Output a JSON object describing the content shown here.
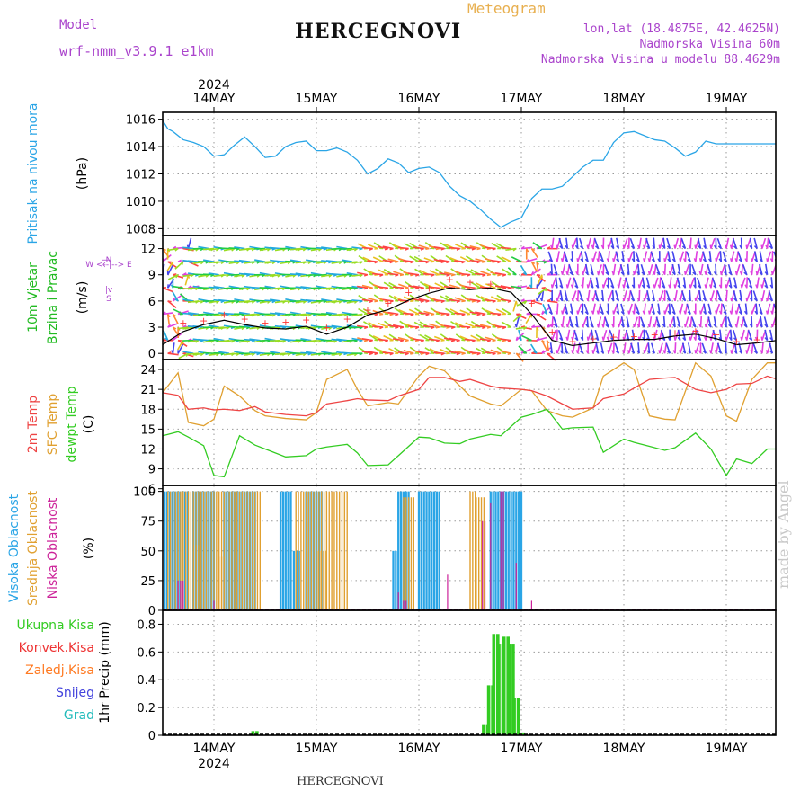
{
  "header": {
    "model_label": "Model",
    "model_name": "wrf-nmm_v3.9.1 e1km",
    "title": "HERCEGNOVI",
    "meteogram": "Meteogram",
    "lonlat": "lon,lat (18.4875E, 42.4625N)",
    "elevation": "Nadmorska Visina 60m",
    "model_elevation": "Nadmorska Visina u modelu 88.4629m",
    "footer_title": "HERCEGNOVI",
    "watermark": "made by Angel"
  },
  "colors": {
    "pressure": "#2aa5e6",
    "wind_label": "#22bb22",
    "wind_gust": "#ff3333",
    "wind_mean": "#000000",
    "temp2m": "#ee4444",
    "sfc_temp": "#e0a030",
    "dewpt": "#33cc22",
    "cloud_high": "#2aa5e6",
    "cloud_mid": "#e0a030",
    "cloud_low": "#cc2299",
    "precip_total": "#33cc22",
    "label_conv": "#ee3333",
    "label_strat": "#ff7a22",
    "label_snow": "#4444dd",
    "label_grad": "#22bbbb",
    "compass": "#aa44cc"
  },
  "time_axis": {
    "year": "2024",
    "days": [
      "14MAY",
      "15MAY",
      "16MAY",
      "17MAY",
      "18MAY",
      "19MAY"
    ]
  },
  "panel_labels": {
    "pressure": {
      "name": "Pritisak na nivou mora",
      "unit": "(hPa)"
    },
    "wind": {
      "name1": "10m Vjetar",
      "name2": "Brzina i Pravac",
      "unit": "(m/s)",
      "compass": [
        "N",
        "^",
        "|",
        "W <--|--> E",
        "|",
        "v",
        "S"
      ]
    },
    "temp": {
      "name1": "2m Temp",
      "name2": "SFC Temp",
      "name3": "dewpt Temp",
      "unit": "(C)"
    },
    "cloud": {
      "name1": "Visoka Oblacnost",
      "name2": "Srednja Oblacnost",
      "name3": "Niska Oblacnost",
      "unit": "(%)"
    },
    "precip": {
      "legend": [
        "Ukupna Kisa",
        "Konvek.Kisa",
        "Zaledj.Kisa",
        "Snijeg",
        "Grad"
      ],
      "unit": "1hr Precip (mm)"
    }
  },
  "chart_data": [
    {
      "type": "line",
      "name": "pressure",
      "ylim": [
        1007.5,
        1016.5
      ],
      "yticks": [
        1008,
        1010,
        1012,
        1014,
        1016
      ],
      "x_days": [
        0,
        0.05,
        0.1,
        0.2,
        0.3,
        0.4,
        0.5,
        0.6,
        0.7,
        0.8,
        0.9,
        1.0,
        1.1,
        1.2,
        1.3,
        1.4,
        1.5,
        1.6,
        1.7,
        1.8,
        1.9,
        2.0,
        2.1,
        2.2,
        2.3,
        2.4,
        2.5,
        2.6,
        2.7,
        2.8,
        2.9,
        3.0,
        3.1,
        3.2,
        3.3,
        3.4,
        3.5,
        3.6,
        3.7,
        3.8,
        3.9,
        4.0,
        4.1,
        4.2,
        4.3,
        4.4,
        4.5,
        4.6,
        4.7,
        4.8,
        4.9,
        5.0,
        5.1,
        5.2,
        5.3,
        5.4,
        5.5,
        5.6,
        5.7,
        5.8,
        5.9,
        6.0
      ],
      "values": [
        1015.9,
        1015.3,
        1015.1,
        1014.5,
        1014.3,
        1014.0,
        1013.3,
        1013.4,
        1014.1,
        1014.7,
        1014.0,
        1013.2,
        1013.3,
        1014.0,
        1014.3,
        1014.4,
        1013.7,
        1013.7,
        1013.9,
        1013.6,
        1013.0,
        1012.0,
        1012.4,
        1013.1,
        1012.8,
        1012.1,
        1012.4,
        1012.5,
        1012.1,
        1011.1,
        1010.4,
        1010.0,
        1009.4,
        1008.7,
        1008.1,
        1008.5,
        1008.8,
        1010.2,
        1010.9,
        1010.9,
        1011.1,
        1011.8,
        1012.5,
        1013.0,
        1013.0,
        1014.3,
        1015.0,
        1015.1,
        1014.8,
        1014.5,
        1014.4,
        1013.9,
        1013.3,
        1013.6,
        1014.4,
        1014.2,
        1014.2,
        1014.2,
        1014.2,
        1014.2,
        1014.2,
        1014.2
      ],
      "x_end": 6.0
    },
    {
      "type": "line",
      "name": "wind",
      "ylim": [
        -0.7,
        13.5
      ],
      "yticks": [
        0,
        3,
        6,
        9,
        12
      ],
      "x_days": [
        0,
        0.2,
        0.4,
        0.6,
        0.8,
        1.0,
        1.2,
        1.4,
        1.6,
        1.8,
        2.0,
        2.2,
        2.4,
        2.6,
        2.8,
        3.0,
        3.2,
        3.4,
        3.6,
        3.8,
        4.0,
        4.2,
        4.4,
        4.6,
        4.8,
        5.0,
        5.2,
        5.4,
        5.6,
        5.8,
        6.0
      ],
      "mean": [
        1.0,
        2.5,
        3.3,
        3.8,
        3.3,
        2.9,
        2.8,
        3.1,
        2.2,
        3.0,
        4.4,
        5.0,
        6.1,
        6.9,
        7.5,
        7.3,
        7.5,
        7.0,
        4.5,
        1.5,
        0.9,
        1.2,
        1.5,
        1.6,
        1.6,
        2.0,
        2.2,
        1.7,
        1.0,
        1.2,
        1.5
      ],
      "gust": [
        1.5,
        3.5,
        3.8,
        4.5,
        4.0,
        3.5,
        3.6,
        3.9,
        3.0,
        4.0,
        5.0,
        5.8,
        7.0,
        7.5,
        8.5,
        8.2,
        8.0,
        7.6,
        5.8,
        2.5,
        1.4,
        1.7,
        1.9,
        2.0,
        2.2,
        2.4,
        2.6,
        2.2,
        1.4,
        1.6,
        3.3
      ],
      "direction_regimes": [
        {
          "from_day": 0.0,
          "to_day": 0.3,
          "direction": "variable"
        },
        {
          "from_day": 0.3,
          "to_day": 2.0,
          "direction": "east"
        },
        {
          "from_day": 2.0,
          "to_day": 3.4,
          "direction": "southeast"
        },
        {
          "from_day": 3.4,
          "to_day": 3.75,
          "direction": "variable"
        },
        {
          "from_day": 3.75,
          "to_day": 6.0,
          "direction": "north"
        }
      ]
    },
    {
      "type": "line",
      "name": "temperature",
      "ylim": [
        6.5,
        25.5
      ],
      "yticks": [
        6,
        9,
        12,
        15,
        18,
        21,
        24
      ],
      "x_days": [
        0,
        0.15,
        0.25,
        0.4,
        0.5,
        0.6,
        0.75,
        0.9,
        1.0,
        1.2,
        1.4,
        1.5,
        1.6,
        1.8,
        1.9,
        2.0,
        2.2,
        2.3,
        2.5,
        2.6,
        2.75,
        2.9,
        3.0,
        3.2,
        3.3,
        3.5,
        3.6,
        3.75,
        3.9,
        4.0,
        4.2,
        4.3,
        4.5,
        4.6,
        4.75,
        4.9,
        5.0,
        5.2,
        5.35,
        5.5,
        5.6,
        5.75,
        5.9,
        6.0
      ],
      "temp2m": [
        20.5,
        20.1,
        18.0,
        18.2,
        17.9,
        18.0,
        17.8,
        18.4,
        17.6,
        17.2,
        17.0,
        17.5,
        18.8,
        19.3,
        19.6,
        19.4,
        19.3,
        20.0,
        21.0,
        22.8,
        22.8,
        22.2,
        22.5,
        21.5,
        21.2,
        21.0,
        20.8,
        20.0,
        18.8,
        18.0,
        18.2,
        19.6,
        20.3,
        21.2,
        22.5,
        22.7,
        22.8,
        21.0,
        20.5,
        21.0,
        21.8,
        21.9,
        23.0,
        22.5
      ],
      "sfc": [
        20.5,
        23.5,
        16.0,
        15.5,
        16.5,
        21.5,
        20.0,
        17.8,
        17.0,
        16.6,
        16.4,
        17.5,
        22.5,
        24.0,
        21.0,
        18.5,
        19.0,
        18.8,
        23.0,
        24.5,
        23.8,
        21.5,
        20.0,
        18.8,
        18.5,
        21.0,
        20.8,
        17.8,
        17.0,
        16.8,
        18.2,
        23.0,
        25.0,
        24.0,
        17.0,
        16.5,
        16.4,
        25.0,
        23.0,
        17.0,
        16.2,
        22.5,
        25.0,
        25.0
      ],
      "dewpt": [
        14.0,
        14.6,
        13.8,
        12.5,
        8.0,
        7.8,
        14.0,
        12.6,
        12.0,
        10.8,
        11.0,
        12.0,
        12.3,
        12.7,
        11.4,
        9.5,
        9.6,
        11.0,
        13.8,
        13.7,
        12.9,
        12.8,
        13.5,
        14.2,
        14.0,
        16.8,
        17.2,
        18.0,
        15.0,
        15.2,
        15.3,
        11.5,
        13.5,
        13.0,
        12.4,
        11.8,
        12.2,
        14.4,
        12.0,
        8.0,
        10.5,
        9.8,
        12.0,
        12.0
      ]
    },
    {
      "type": "bar",
      "name": "cloud",
      "ylim": [
        0,
        105
      ],
      "yticks": [
        0,
        25,
        50,
        75,
        100
      ],
      "high": [
        [
          0.02,
          0.25,
          100
        ],
        [
          0.3,
          0.5,
          100
        ],
        [
          0.6,
          0.9,
          100
        ],
        [
          1.15,
          1.25,
          100
        ],
        [
          1.28,
          1.35,
          50
        ],
        [
          1.4,
          1.55,
          100
        ],
        [
          2.25,
          2.28,
          50
        ],
        [
          2.3,
          2.4,
          100
        ],
        [
          2.5,
          2.7,
          100
        ],
        [
          3.2,
          3.5,
          100
        ]
      ],
      "mid": [
        [
          0.05,
          0.95,
          100
        ],
        [
          0.3,
          0.35,
          55
        ],
        [
          0.55,
          0.62,
          45
        ],
        [
          1.3,
          1.8,
          100
        ],
        [
          1.52,
          1.6,
          50
        ],
        [
          2.35,
          2.45,
          95
        ],
        [
          3.0,
          3.05,
          100
        ],
        [
          3.06,
          3.15,
          95
        ]
      ],
      "low": [
        [
          0.15,
          0.2,
          25
        ],
        [
          0.5,
          0.52,
          8
        ],
        [
          2.3,
          2.32,
          15
        ],
        [
          2.35,
          2.38,
          8
        ],
        [
          2.78,
          2.8,
          30
        ],
        [
          3.12,
          3.15,
          75
        ],
        [
          3.2,
          3.22,
          90
        ],
        [
          3.3,
          3.33,
          100
        ],
        [
          3.45,
          3.47,
          40
        ],
        [
          3.6,
          3.62,
          8
        ]
      ]
    },
    {
      "type": "bar",
      "name": "precip",
      "ylim": [
        0,
        0.9
      ],
      "yticks": [
        0,
        0.2,
        0.4,
        0.6,
        0.8
      ],
      "x_days": [
        3.15,
        3.2,
        3.25,
        3.3,
        3.35,
        3.4,
        3.45,
        3.5,
        0.9
      ],
      "total": [
        0.08,
        0.36,
        0.73,
        0.66,
        0.71,
        0.66,
        0.27,
        0.02,
        0.03
      ]
    }
  ]
}
